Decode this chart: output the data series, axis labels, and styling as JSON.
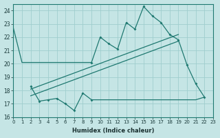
{
  "xlabel": "Humidex (Indice chaleur)",
  "xlim": [
    0,
    23
  ],
  "ylim": [
    16,
    24.5
  ],
  "yticks": [
    16,
    17,
    18,
    19,
    20,
    21,
    22,
    23,
    24
  ],
  "xticks": [
    0,
    1,
    2,
    3,
    4,
    5,
    6,
    7,
    8,
    9,
    10,
    11,
    12,
    13,
    14,
    15,
    16,
    17,
    18,
    19,
    20,
    21,
    22,
    23
  ],
  "bg_color": "#c5e5e5",
  "line_color": "#1e7870",
  "grid_color": "#9fcece",
  "curve_x": [
    0,
    1,
    2,
    3,
    4,
    5,
    6,
    7,
    8,
    9,
    10,
    11,
    12,
    13,
    14,
    15,
    16,
    17,
    18,
    19,
    20,
    21,
    22
  ],
  "curve_y": [
    22.7,
    20.1,
    20.1,
    20.1,
    20.1,
    20.1,
    20.1,
    20.1,
    20.1,
    20.1,
    22.0,
    21.5,
    21.1,
    23.1,
    22.6,
    24.3,
    23.6,
    23.1,
    22.2,
    21.8,
    19.9,
    18.5,
    17.5
  ],
  "lower_x": [
    2,
    3,
    4,
    5,
    6,
    7,
    8,
    9,
    10,
    11,
    12,
    13,
    14,
    15,
    16,
    17,
    18,
    19,
    20,
    21,
    22
  ],
  "lower_y": [
    18.3,
    17.2,
    17.3,
    17.4,
    17.0,
    16.5,
    17.8,
    17.3,
    17.3,
    17.3,
    17.3,
    17.3,
    17.3,
    17.3,
    17.3,
    17.3,
    17.3,
    17.3,
    17.3,
    17.3,
    17.5
  ],
  "trend1_x": [
    2,
    19
  ],
  "trend1_y": [
    18.1,
    22.2
  ],
  "trend2_x": [
    2,
    19
  ],
  "trend2_y": [
    17.6,
    21.7
  ]
}
